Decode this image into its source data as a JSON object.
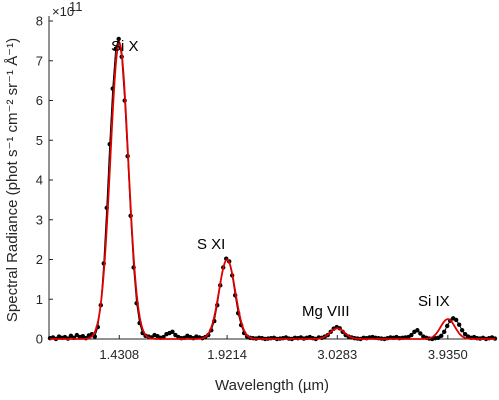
{
  "chart_data": {
    "type": "line",
    "title": "",
    "xlabel": "Wavelength (µm)",
    "ylabel": "Spectral Radiance (phot s⁻¹ cm⁻² sr⁻¹ Å⁻¹)",
    "y_exponent_label": "×10",
    "y_exponent_power": "11",
    "ylim": [
      0,
      8
    ],
    "y_ticks": [
      "0",
      "1",
      "2",
      "3",
      "4",
      "5",
      "6",
      "7",
      "8"
    ],
    "x_tick_labels": [
      "1.4308",
      "1.9214",
      "3.0283",
      "3.9350"
    ],
    "grid": false,
    "annotations": [
      "Si X",
      "S XI",
      "Mg VIII",
      "Si IX"
    ],
    "colors": {
      "data": "#000000",
      "fit": "#e00000"
    },
    "series": [
      {
        "style": "black line with dot markers",
        "values": [
          0.02,
          0.04,
          0.0,
          0.06,
          0.03,
          0.05,
          0.01,
          0.08,
          0.03,
          0.1,
          0.05,
          0.07,
          0.02,
          0.09,
          0.12,
          0.06,
          0.3,
          0.85,
          1.9,
          3.3,
          4.9,
          6.3,
          7.3,
          7.55,
          7.1,
          6.0,
          4.6,
          3.1,
          1.8,
          0.9,
          0.4,
          0.15,
          0.08,
          0.06,
          0.04,
          0.1,
          0.07,
          0.03,
          0.05,
          0.12,
          0.15,
          0.18,
          0.1,
          0.05,
          0.02,
          0.03,
          0.08,
          0.05,
          0.02,
          0.06,
          0.04,
          0.02,
          0.05,
          0.1,
          0.22,
          0.45,
          0.85,
          1.35,
          1.8,
          2.02,
          1.95,
          1.6,
          1.1,
          0.65,
          0.35,
          0.15,
          0.06,
          0.03,
          0.02,
          0.01,
          0.03,
          0.02,
          0.0,
          0.01,
          0.02,
          0.03,
          0.0,
          0.01,
          0.02,
          0.04,
          0.01,
          0.0,
          0.03,
          0.02,
          0.04,
          0.01,
          0.03,
          0.05,
          0.02,
          0.0,
          0.04,
          0.03,
          0.06,
          0.1,
          0.18,
          0.26,
          0.3,
          0.27,
          0.18,
          0.1,
          0.06,
          0.04,
          0.02,
          0.01,
          0.0,
          0.03,
          0.02,
          0.04,
          0.05,
          0.03,
          0.02,
          0.01,
          0.0,
          0.02,
          0.04,
          0.03,
          0.05,
          0.02,
          0.03,
          0.04,
          0.05,
          0.1,
          0.18,
          0.22,
          0.14,
          0.06,
          0.03,
          0.01,
          0.0,
          0.02,
          0.03,
          0.08,
          0.18,
          0.33,
          0.46,
          0.52,
          0.48,
          0.36,
          0.22,
          0.12,
          0.06,
          0.03,
          0.05,
          0.02,
          0.01,
          0.03,
          0.0,
          0.02,
          0.04,
          0.01
        ]
      },
      {
        "style": "red fit line",
        "peaks": [
          {
            "center_index": 23.2,
            "amplitude": 7.45,
            "sigma": 3.0
          },
          {
            "center_index": 59.3,
            "amplitude": 2.0,
            "sigma": 2.7
          },
          {
            "center_index": 96.2,
            "amplitude": 0.27,
            "sigma": 2.4
          },
          {
            "center_index": 133.2,
            "amplitude": 0.5,
            "sigma": 2.4
          }
        ],
        "baseline": 0.0
      }
    ]
  }
}
